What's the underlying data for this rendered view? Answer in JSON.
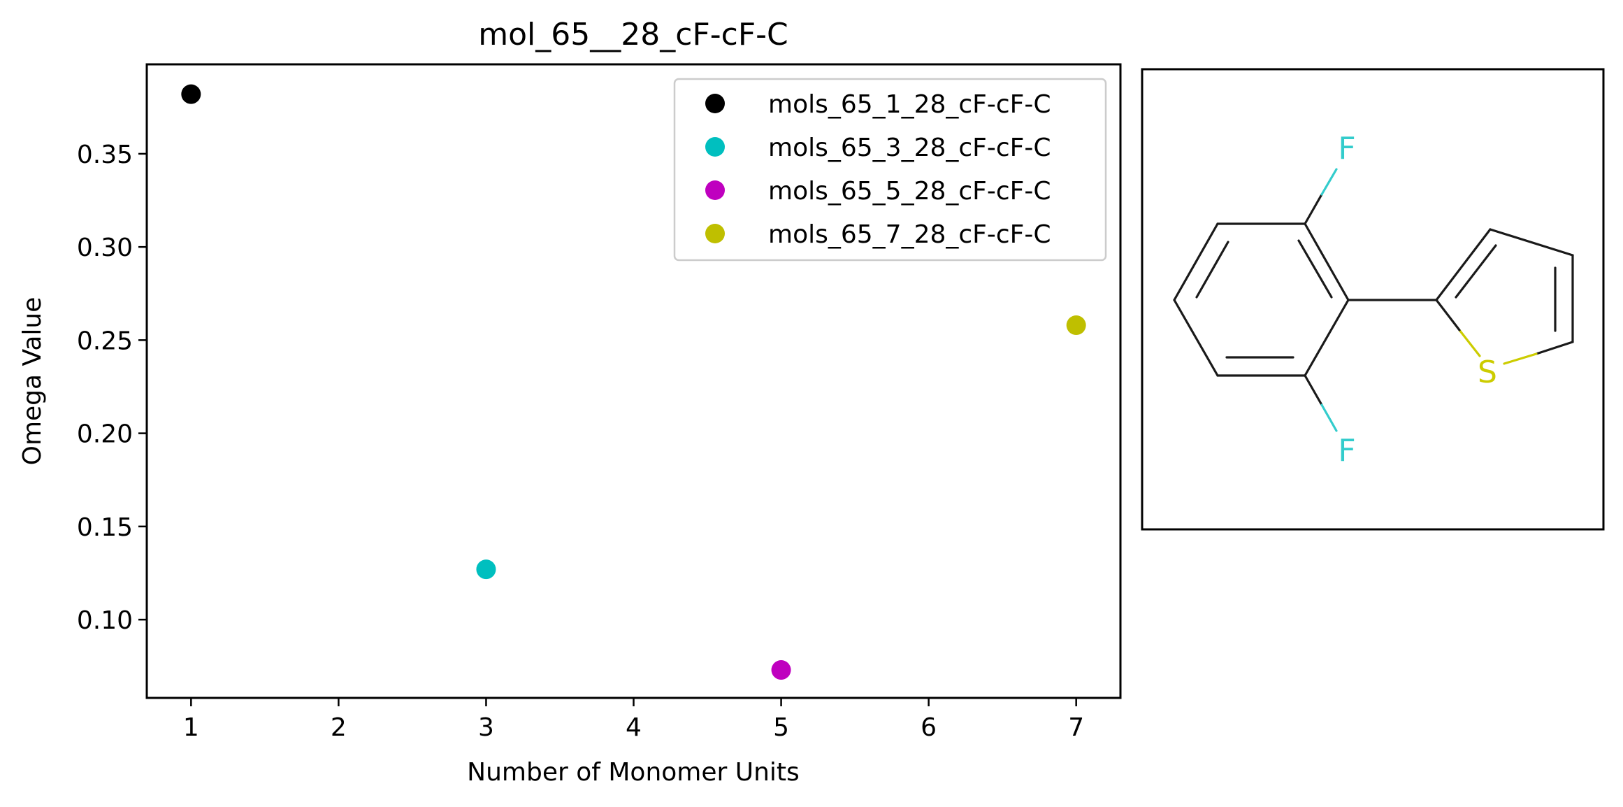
{
  "chart_data": {
    "type": "scatter",
    "title": "mol_65__28_cF-cF-C",
    "xlabel": "Number of Monomer Units",
    "ylabel": "Omega Value",
    "xlim": [
      0.7,
      7.3
    ],
    "ylim": [
      0.058,
      0.398
    ],
    "xticks": [
      1,
      2,
      3,
      4,
      5,
      6,
      7
    ],
    "yticks": [
      0.1,
      0.15,
      0.2,
      0.25,
      0.3,
      0.35
    ],
    "grid": false,
    "legend_position": "upper-right",
    "series": [
      {
        "name": "mols_65_1_28_cF-cF-C",
        "color": "#000000",
        "points": [
          [
            1,
            0.382
          ]
        ]
      },
      {
        "name": "mols_65_3_28_cF-cF-C",
        "color": "#00bfbf",
        "points": [
          [
            3,
            0.127
          ]
        ]
      },
      {
        "name": "mols_65_5_28_cF-cF-C",
        "color": "#bf00bf",
        "points": [
          [
            5,
            0.073
          ]
        ]
      },
      {
        "name": "mols_65_7_28_cF-cF-C",
        "color": "#bfbf00",
        "points": [
          [
            7,
            0.258
          ]
        ]
      }
    ]
  },
  "molecule": {
    "atom_labels": [
      "F",
      "F",
      "S"
    ],
    "colors": {
      "bond": "#1a1a1a",
      "fluorine": "#33cccc",
      "sulfur": "#cccc00"
    }
  }
}
